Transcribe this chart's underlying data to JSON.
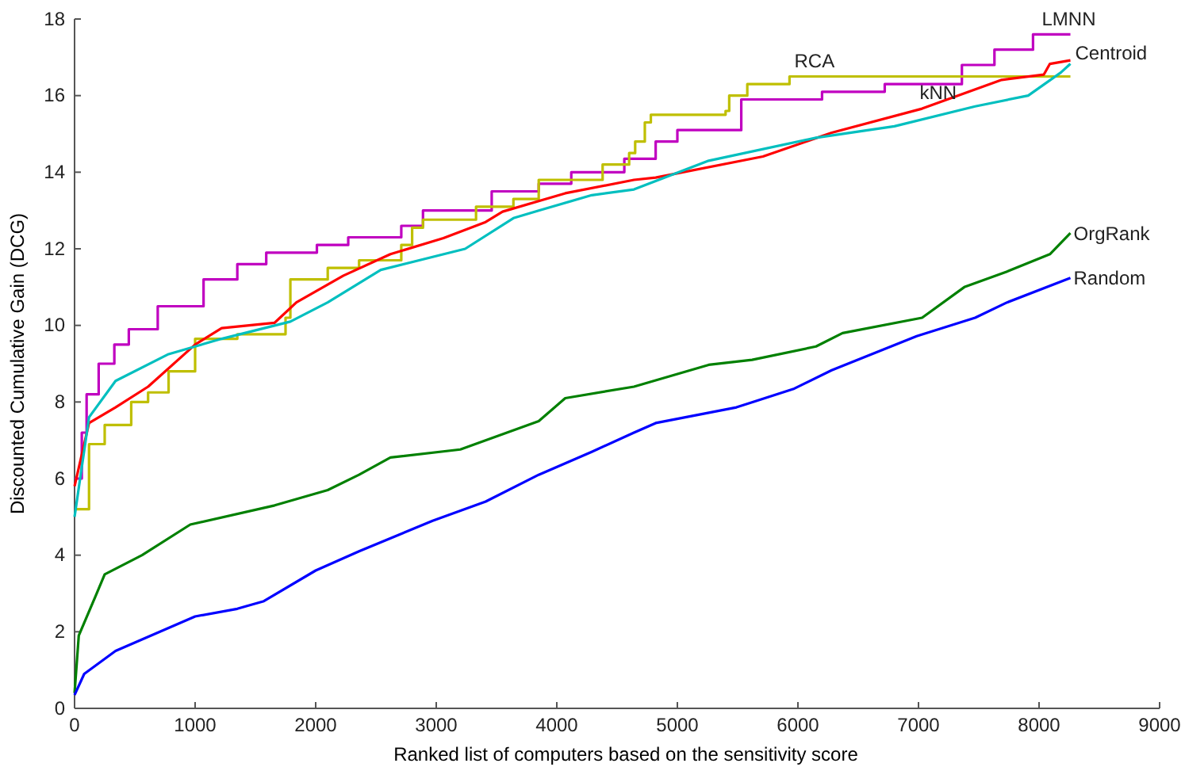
{
  "chart_data": {
    "type": "line",
    "xlabel": "Ranked list of computers based on the sensitivity score",
    "ylabel": "Discounted Cumulative Gain (DCG)",
    "xlim": [
      0,
      9000
    ],
    "ylim": [
      0,
      18
    ],
    "xticks": [
      0,
      1000,
      2000,
      3000,
      4000,
      5000,
      6000,
      7000,
      8000,
      9000
    ],
    "yticks": [
      0,
      2,
      4,
      6,
      8,
      10,
      12,
      14,
      16,
      18
    ],
    "grid": false,
    "legend": false,
    "series": [
      {
        "name": "LMNN",
        "type": "step",
        "color": "#c000c0",
        "x": [
          0,
          60,
          100,
          200,
          330,
          450,
          690,
          1070,
          1350,
          1590,
          2010,
          2270,
          2710,
          2890,
          3460,
          3850,
          4120,
          4560,
          4820,
          5000,
          5530,
          6200,
          6720,
          7360,
          7630,
          7950,
          8260
        ],
        "values": [
          6.0,
          7.2,
          8.2,
          9.0,
          9.5,
          9.9,
          10.5,
          11.2,
          11.6,
          11.9,
          12.1,
          12.3,
          12.6,
          13.0,
          13.5,
          13.7,
          14.0,
          14.35,
          14.8,
          15.1,
          15.9,
          16.1,
          16.3,
          16.8,
          17.2,
          17.6,
          17.6
        ]
      },
      {
        "name": "RCA",
        "type": "step",
        "color": "#bfbf00",
        "x": [
          0,
          120,
          250,
          470,
          610,
          780,
          1000,
          1350,
          1750,
          1790,
          2100,
          2360,
          2710,
          2800,
          2890,
          3330,
          3640,
          3850,
          4380,
          4600,
          4650,
          4730,
          4780,
          5400,
          5430,
          5580,
          5930,
          8260
        ],
        "values": [
          5.2,
          6.9,
          7.4,
          8.0,
          8.25,
          8.8,
          9.65,
          9.77,
          10.2,
          11.2,
          11.5,
          11.7,
          12.1,
          12.55,
          12.76,
          13.1,
          13.3,
          13.8,
          14.2,
          14.5,
          14.8,
          15.3,
          15.5,
          15.6,
          16.0,
          16.3,
          16.5,
          16.5
        ]
      },
      {
        "name": "Centroid",
        "color": "#ff0000",
        "x": [
          0,
          120,
          340,
          610,
          1000,
          1220,
          1660,
          1840,
          2230,
          2620,
          3060,
          3410,
          3550,
          4070,
          4640,
          4820,
          5710,
          6280,
          7030,
          7690,
          8040,
          8090,
          8260
        ],
        "values": [
          5.8,
          7.45,
          7.86,
          8.4,
          9.5,
          9.93,
          10.07,
          10.6,
          11.3,
          11.86,
          12.28,
          12.7,
          12.97,
          13.45,
          13.8,
          13.86,
          14.41,
          15.03,
          15.66,
          16.41,
          16.55,
          16.83,
          16.92
        ]
      },
      {
        "name": "kNN",
        "color": "#00bfbf",
        "x": [
          0,
          120,
          340,
          780,
          1220,
          1790,
          2100,
          2540,
          3240,
          3640,
          3850,
          4290,
          4640,
          5260,
          6150,
          6800,
          7470,
          7910,
          8180,
          8260
        ],
        "values": [
          5.0,
          7.6,
          8.55,
          9.25,
          9.65,
          10.1,
          10.6,
          11.45,
          12.0,
          12.8,
          13.0,
          13.4,
          13.55,
          14.3,
          14.9,
          15.2,
          15.72,
          16.0,
          16.6,
          16.83
        ]
      },
      {
        "name": "OrgRank",
        "color": "#008000",
        "x": [
          0,
          35,
          170,
          250,
          560,
          960,
          1660,
          2100,
          2360,
          2620,
          3200,
          3850,
          4070,
          4640,
          5260,
          5620,
          6150,
          6370,
          7030,
          7380,
          7730,
          8090,
          8260
        ],
        "values": [
          0.4,
          1.9,
          2.9,
          3.5,
          4.0,
          4.8,
          5.3,
          5.7,
          6.1,
          6.55,
          6.76,
          7.5,
          8.1,
          8.4,
          8.97,
          9.1,
          9.45,
          9.8,
          10.2,
          11.0,
          11.4,
          11.86,
          12.41
        ]
      },
      {
        "name": "Random",
        "color": "#0000ff",
        "x": [
          0,
          80,
          340,
          1000,
          1350,
          1570,
          2000,
          2360,
          2970,
          3410,
          3850,
          4290,
          4640,
          4820,
          5490,
          5970,
          6280,
          6985,
          7470,
          7735,
          8260
        ],
        "values": [
          0.35,
          0.9,
          1.5,
          2.4,
          2.6,
          2.8,
          3.6,
          4.1,
          4.9,
          5.4,
          6.1,
          6.7,
          7.2,
          7.45,
          7.86,
          8.35,
          8.83,
          9.72,
          10.2,
          10.6,
          11.24
        ]
      }
    ]
  }
}
